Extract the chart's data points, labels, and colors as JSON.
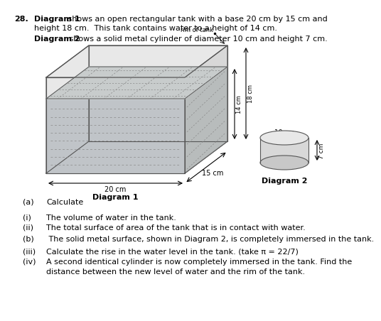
{
  "question_num": "28.",
  "intro_bold1": "Diagram 1",
  "intro_text1_a": " shows an open rectangular tank with a base 20 cm by 15 cm and",
  "intro_text1_b": "height 18 cm.  This tank contains water to a height of 14 cm.",
  "intro_bold2": "Diagram 2",
  "intro_text2": " shows a solid metal cylinder of diameter 10 cm and height 7 cm.",
  "diagram1_label": "Diagram 1",
  "diagram2_label": "Diagram 2",
  "dim_20cm": "20 cm",
  "dim_15cm": "15 cm",
  "dim_14cm": "14 cm",
  "dim_18cm": "18 cm",
  "dim_10cm": "10 cm",
  "dim_7cm": "7 cm",
  "rim_label": "rim of tank",
  "part_a": "(a)",
  "part_a_text": "Calculate",
  "part_i": "(i)",
  "part_i_text": "The volume of water in the tank.",
  "part_ii": "(ii)",
  "part_ii_text": "The total surface of area of the tank that is in contact with water.",
  "part_b": "(b)",
  "part_b_text": " The solid metal surface, shown in Diagram 2, is completely immersed in the tank.",
  "part_iii": "(iii)",
  "part_iii_text": "Calculate the rise in the water level in the tank. (take π = 22/7)",
  "part_iv": "(iv)",
  "part_iv_text1": "A second identical cylinder is now completely immersed in the tank. Find the",
  "part_iv_text2": "distance between the new level of water and the rim of the tank.",
  "bg_color": "#ffffff",
  "text_color": "#000000",
  "edge_color": "#555555",
  "wall_light": "#e8e8e8",
  "wall_mid": "#d8d8d8",
  "wall_dark": "#c8c8c8",
  "water_top": "#c8cccc",
  "water_front": "#c0c4c8",
  "water_side": "#b8bcbc",
  "dash_color": "#888888"
}
